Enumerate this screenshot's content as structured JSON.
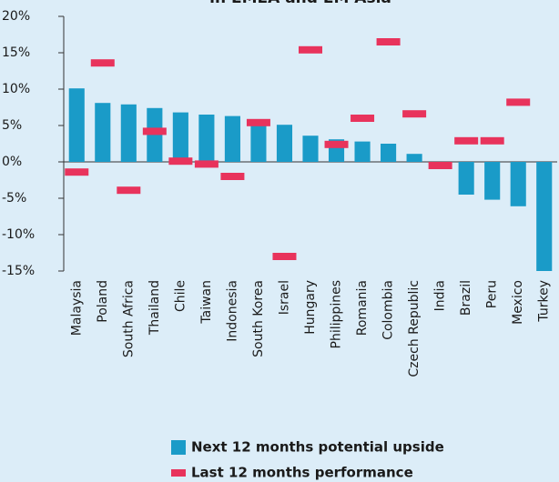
{
  "chart_data": {
    "type": "bar",
    "title": "in EMEA and EM Asia",
    "categories": [
      "Malaysia",
      "Poland",
      "South Africa",
      "Thailand",
      "Chile",
      "Taiwan",
      "Indonesia",
      "South Korea",
      "Israel",
      "Hungary",
      "Philippines",
      "Romania",
      "Colombia",
      "Czech Republic",
      "India",
      "Brazil",
      "Peru",
      "Mexico",
      "Turkey"
    ],
    "series": [
      {
        "name": "Next 12 months potential upside",
        "color": "#1a9bc8",
        "mark": "bar",
        "values": [
          10.1,
          8.1,
          7.9,
          7.4,
          6.8,
          6.5,
          6.3,
          5.6,
          5.1,
          3.6,
          3.1,
          2.8,
          2.5,
          1.1,
          0,
          -4.5,
          -5.2,
          -6.1,
          -15
        ]
      },
      {
        "name": "Last 12 months performance",
        "color": "#e8335c",
        "mark": "dash",
        "values": [
          -1.4,
          13.6,
          -3.9,
          4.2,
          0.1,
          -0.3,
          -2.0,
          5.4,
          -13,
          15.4,
          2.4,
          6.0,
          16.5,
          6.6,
          -0.5,
          2.9,
          2.9,
          8.2,
          null
        ]
      }
    ],
    "ylim": [
      -15,
      20
    ],
    "yticks": [
      {
        "value": -15,
        "label": "-15%"
      },
      {
        "value": -10,
        "label": "-10%"
      },
      {
        "value": -5,
        "label": "-5%"
      },
      {
        "value": 0,
        "label": "0%"
      },
      {
        "value": 5,
        "label": "5%"
      },
      {
        "value": 10,
        "label": "10%"
      },
      {
        "value": 15,
        "label": "15%"
      },
      {
        "value": 20,
        "label": "20%"
      }
    ],
    "legend": "bottom"
  }
}
